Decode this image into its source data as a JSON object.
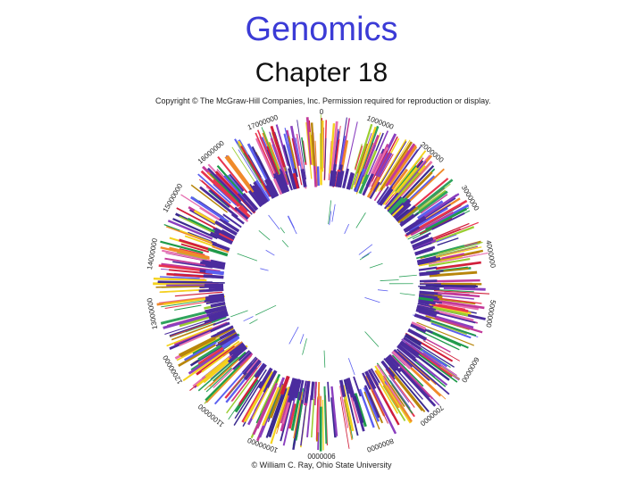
{
  "slide": {
    "title": "Genomics",
    "subtitle": "Chapter 18",
    "copyright": "Copyright © The McGraw-Hill Companies, Inc. Permission required for reproduction or display.",
    "credit": "© William C. Ray, Ohio State University"
  },
  "genome_map": {
    "coordinate_labels": [
      "0",
      "1000000",
      "2000000",
      "3000000",
      "4000000",
      "5000000",
      "6000000",
      "7000000",
      "8000000",
      "9000000",
      "10000000",
      "11000000",
      "12000000",
      "13000000",
      "14000000",
      "15000000",
      "16000000",
      "17000000"
    ],
    "palette": [
      "#4b2c9e",
      "#3a2a8f",
      "#d11f3a",
      "#e8344e",
      "#f08a2a",
      "#f4d21e",
      "#1f9a4a",
      "#2fa35c",
      "#c23a9a",
      "#8a3fbf",
      "#e66fb0",
      "#9acd32",
      "#5b5ff0",
      "#b8860b"
    ],
    "inner_ring_color": "#4b2c9e"
  }
}
